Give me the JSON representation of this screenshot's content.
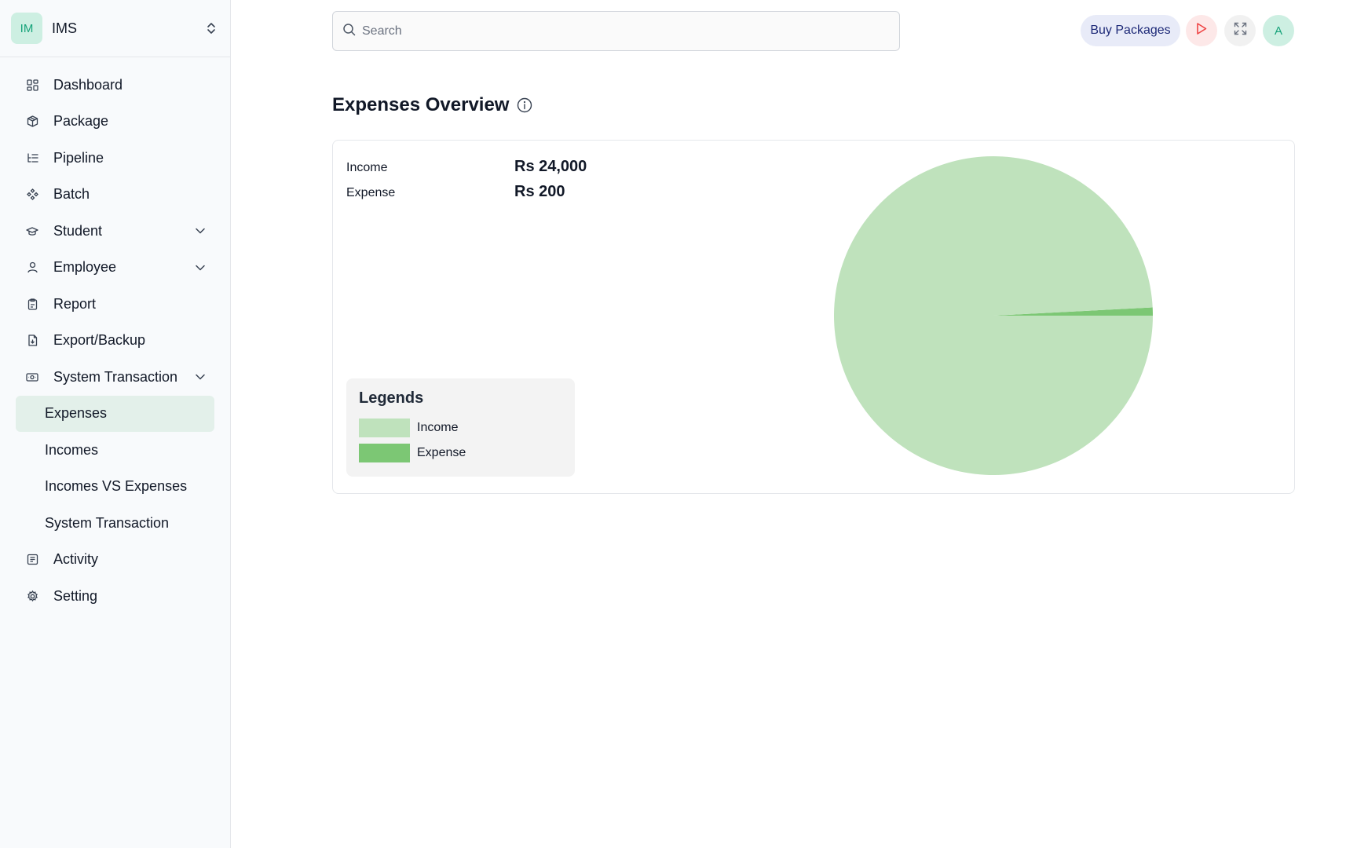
{
  "brand": {
    "initials": "IM",
    "name": "IMS"
  },
  "sidebar": {
    "items": [
      {
        "label": "Dashboard",
        "icon": "dashboard-icon"
      },
      {
        "label": "Package",
        "icon": "package-icon"
      },
      {
        "label": "Pipeline",
        "icon": "pipeline-icon"
      },
      {
        "label": "Batch",
        "icon": "batch-icon"
      },
      {
        "label": "Student",
        "icon": "graduation-cap-icon",
        "expandable": true
      },
      {
        "label": "Employee",
        "icon": "user-icon",
        "expandable": true
      },
      {
        "label": "Report",
        "icon": "clipboard-icon"
      },
      {
        "label": "Export/Backup",
        "icon": "file-export-icon"
      },
      {
        "label": "System Transaction",
        "icon": "banknote-icon",
        "expandable": true,
        "expanded": true
      }
    ],
    "sub_items": [
      {
        "label": "Expenses",
        "active": true
      },
      {
        "label": "Incomes"
      },
      {
        "label": "Incomes VS Expenses"
      },
      {
        "label": "System Transaction"
      }
    ],
    "bottom_items": [
      {
        "label": "Activity",
        "icon": "activity-log-icon"
      },
      {
        "label": "Setting",
        "icon": "gear-icon"
      }
    ]
  },
  "header": {
    "search_placeholder": "Search",
    "buy_label": "Buy Packages",
    "user_initial": "A"
  },
  "page": {
    "title": "Expenses Overview"
  },
  "summary": {
    "income_label": "Income",
    "income_value": "Rs 24,000",
    "expense_label": "Expense",
    "expense_value": "Rs 200"
  },
  "legend": {
    "title": "Legends",
    "items": [
      {
        "label": "Income",
        "color": "#bfe2bc"
      },
      {
        "label": "Expense",
        "color": "#7cc774"
      }
    ]
  },
  "colors": {
    "accent": "#16a37a",
    "income": "#bfe2bc",
    "expense": "#7cc774",
    "active_bg": "#e3f0ea"
  },
  "chart_data": {
    "type": "pie",
    "categories": [
      "Income",
      "Expense"
    ],
    "values": [
      24000,
      200
    ],
    "title": "",
    "colors": [
      "#bfe2bc",
      "#7cc774"
    ]
  }
}
